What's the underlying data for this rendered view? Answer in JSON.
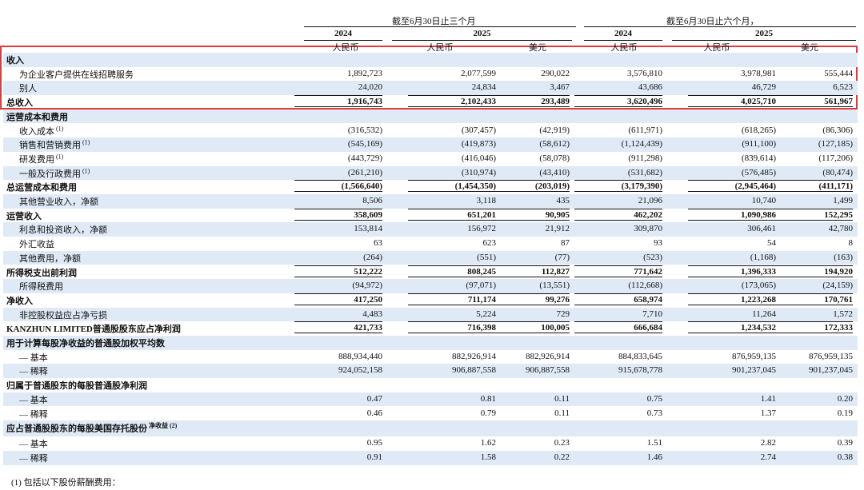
{
  "header": {
    "period_3m": "截至6月30日止三个月",
    "period_6m": "截至6月30日止六个月，",
    "years": [
      "2024",
      "2025",
      "2024",
      "2025"
    ],
    "currencies": [
      "人民币",
      "人民币",
      "美元",
      "人民币",
      "人民币",
      "美元"
    ]
  },
  "table": {
    "rows": [
      {
        "label": "收入",
        "bold": true
      },
      {
        "label": "为企业客户提供在线招聘服务",
        "values": [
          "1,892,723",
          "2,077,599",
          "290,022",
          "3,576,810",
          "3,978,981",
          "555,444"
        ]
      },
      {
        "label": "别人",
        "values": [
          "24,020",
          "24,834",
          "3,467",
          "43,686",
          "46,729",
          "6,523"
        ]
      },
      {
        "label": "总收入",
        "bold": true,
        "values": [
          "1,916,743",
          "2,102,433",
          "293,489",
          "3,620,496",
          "4,025,710",
          "561,967"
        ]
      },
      {
        "label": "运营成本和费用",
        "bold": true
      },
      {
        "label": "收入成本",
        "note": "(1)",
        "values": [
          "(316,532)",
          "(307,457)",
          "(42,919)",
          "(611,971)",
          "(618,265)",
          "(86,306)"
        ]
      },
      {
        "label": "销售和营销费用",
        "note": "(1)",
        "values": [
          "(545,169)",
          "(419,873)",
          "(58,612)",
          "(1,124,439)",
          "(911,100)",
          "(127,185)"
        ]
      },
      {
        "label": "研发费用",
        "note": "(1)",
        "values": [
          "(443,729)",
          "(416,046)",
          "(58,078)",
          "(911,298)",
          "(839,614)",
          "(117,206)"
        ]
      },
      {
        "label": "一般及行政费用",
        "note": "(1)",
        "values": [
          "(261,210)",
          "(310,974)",
          "(43,410)",
          "(531,682)",
          "(576,485)",
          "(80,474)"
        ]
      },
      {
        "label": "总运营成本和费用",
        "bold": true,
        "values": [
          "(1,566,640)",
          "(1,454,350)",
          "(203,019)",
          "(3,179,390)",
          "(2,945,464)",
          "(411,171)"
        ]
      },
      {
        "label": "其他营业收入，净额",
        "values": [
          "8,506",
          "3,118",
          "435",
          "21,096",
          "10,740",
          "1,499"
        ]
      },
      {
        "label": "运营收入",
        "bold": true,
        "values": [
          "358,609",
          "651,201",
          "90,905",
          "462,202",
          "1,090,986",
          "152,295"
        ]
      },
      {
        "label": "利息和投资收入，净额",
        "values": [
          "153,814",
          "156,972",
          "21,912",
          "309,870",
          "306,461",
          "42,780"
        ]
      },
      {
        "label": "外汇收益",
        "values": [
          "63",
          "623",
          "87",
          "93",
          "54",
          "8"
        ]
      },
      {
        "label": "其他费用，净额",
        "values": [
          "(264)",
          "(551)",
          "(77)",
          "(523)",
          "(1,168)",
          "(163)"
        ]
      },
      {
        "label": "所得税支出前利润",
        "bold": true,
        "values": [
          "512,222",
          "808,245",
          "112,827",
          "771,642",
          "1,396,333",
          "194,920"
        ]
      },
      {
        "label": "所得税费用",
        "values": [
          "(94,972)",
          "(97,071)",
          "(13,551)",
          "(112,668)",
          "(173,065)",
          "(24,159)"
        ]
      },
      {
        "label": "净收入",
        "bold": true,
        "values": [
          "417,250",
          "711,174",
          "99,276",
          "658,974",
          "1,223,268",
          "170,761"
        ]
      },
      {
        "label": "非控股权益应占净亏损",
        "values": [
          "4,483",
          "5,224",
          "729",
          "7,710",
          "11,264",
          "1,572"
        ]
      },
      {
        "label": "KANZHUN LIMITED普通股股东应占净利润",
        "bold": true,
        "values": [
          "421,733",
          "716,398",
          "100,005",
          "666,684",
          "1,234,532",
          "172,333"
        ]
      },
      {
        "label": "用于计算每股净收益的普通股加权平均数",
        "bold": true
      },
      {
        "label": "— 基本",
        "values": [
          "888,934,440",
          "882,926,914",
          "882,926,914",
          "884,833,645",
          "876,959,135",
          "876,959,135"
        ]
      },
      {
        "label": "— 稀释",
        "values": [
          "924,052,158",
          "906,887,558",
          "906,887,558",
          "915,678,778",
          "901,237,045",
          "901,237,045"
        ]
      },
      {
        "label": "归属于普通股东的每股普通股净利润",
        "bold": true
      },
      {
        "label": "— 基本",
        "values": [
          "0.47",
          "0.81",
          "0.11",
          "0.75",
          "1.41",
          "0.20"
        ]
      },
      {
        "label": "— 稀释",
        "values": [
          "0.46",
          "0.79",
          "0.11",
          "0.73",
          "1.37",
          "0.19"
        ]
      },
      {
        "label": "应占普通股股东的每股美国存托股份",
        "note": "净收益 (2)",
        "bold": true
      },
      {
        "label": "— 基本",
        "values": [
          "0.95",
          "1.62",
          "0.23",
          "1.51",
          "2.82",
          "0.39"
        ]
      },
      {
        "label": "— 稀释",
        "values": [
          "0.91",
          "1.58",
          "0.22",
          "1.46",
          "2.74",
          "0.38"
        ]
      }
    ]
  },
  "footnote": "(1)  包括以下股份薪酬费用："
}
